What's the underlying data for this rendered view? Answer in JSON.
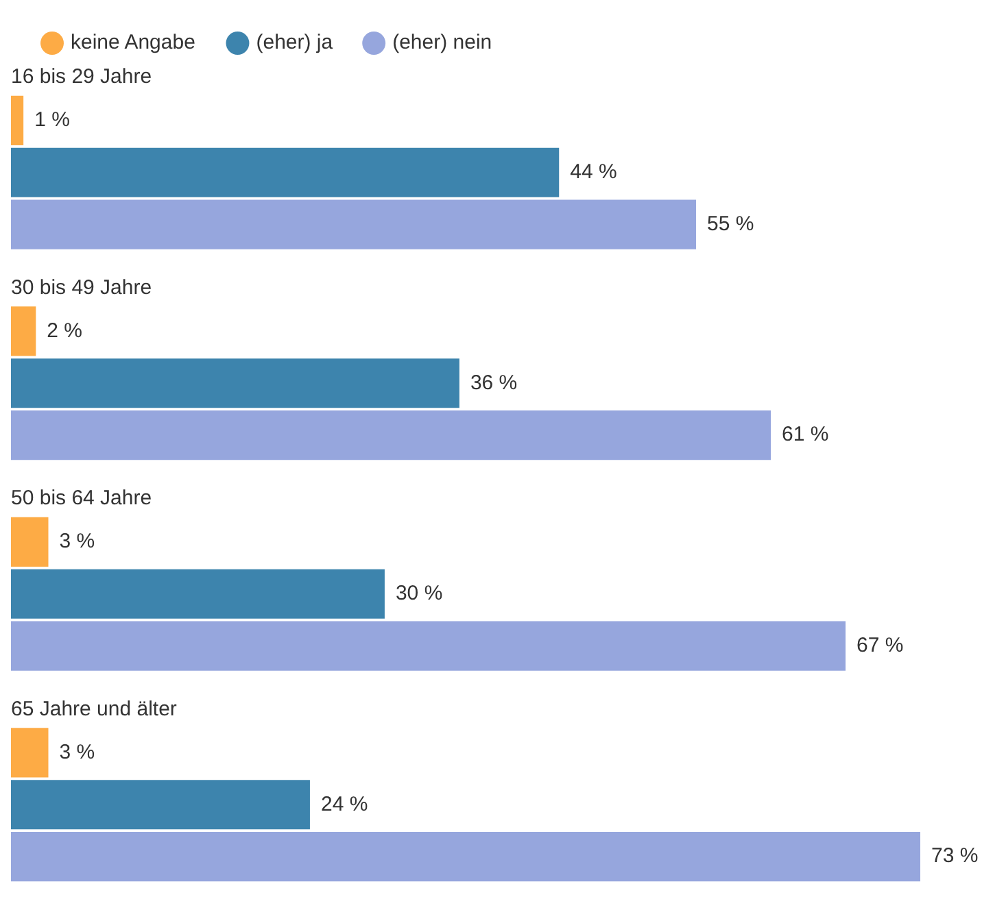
{
  "chart_data": {
    "type": "bar",
    "orientation": "horizontal",
    "legend": "top left",
    "categories": [
      "16 bis 29 Jahre",
      "30 bis 49 Jahre",
      "50 bis 64 Jahre",
      "65 Jahre und älter"
    ],
    "series": [
      {
        "name": "keine Angabe",
        "color": "#fdab45",
        "values": [
          1,
          2,
          3,
          3
        ],
        "value_labels": [
          "1 %",
          "2 %",
          "3 %",
          "3 %"
        ]
      },
      {
        "name": "(eher) ja",
        "color": "#3d84ad",
        "values": [
          44,
          36,
          30,
          24
        ],
        "value_labels": [
          "44 %",
          "36 %",
          "30 %",
          "24 %"
        ]
      },
      {
        "name": "(eher) nein",
        "color": "#96a6dd",
        "values": [
          55,
          61,
          67,
          73
        ],
        "value_labels": [
          "55 %",
          "61 %",
          "67 %",
          "73 %"
        ]
      }
    ]
  }
}
